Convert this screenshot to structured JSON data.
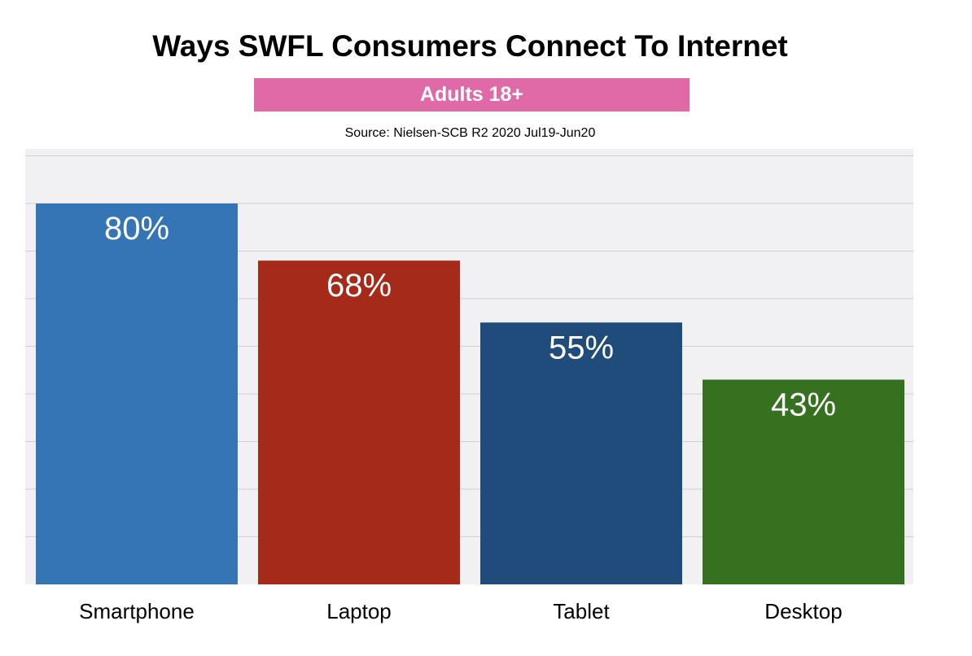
{
  "chart_data": {
    "type": "bar",
    "title": "Ways SWFL Consumers Connect To Internet",
    "subtitle": "Adults 18+",
    "source": "Source: Nielsen-SCB R2 2020 Jul19-Jun20",
    "categories": [
      "Smartphone",
      "Laptop",
      "Tablet",
      "Desktop"
    ],
    "values": [
      80,
      68,
      55,
      43
    ],
    "data_labels": [
      "80%",
      "68%",
      "55%",
      "43%"
    ],
    "colors": [
      "#3575b5",
      "#a52a1a",
      "#204c7c",
      "#35711f"
    ],
    "ylim": [
      0,
      80
    ],
    "grid": true,
    "legend": "none"
  },
  "style": {
    "plot_background": "#f1f1f3",
    "grid_color": "#cfcfd3",
    "subtitle_badge_color": "#e06aa7"
  }
}
